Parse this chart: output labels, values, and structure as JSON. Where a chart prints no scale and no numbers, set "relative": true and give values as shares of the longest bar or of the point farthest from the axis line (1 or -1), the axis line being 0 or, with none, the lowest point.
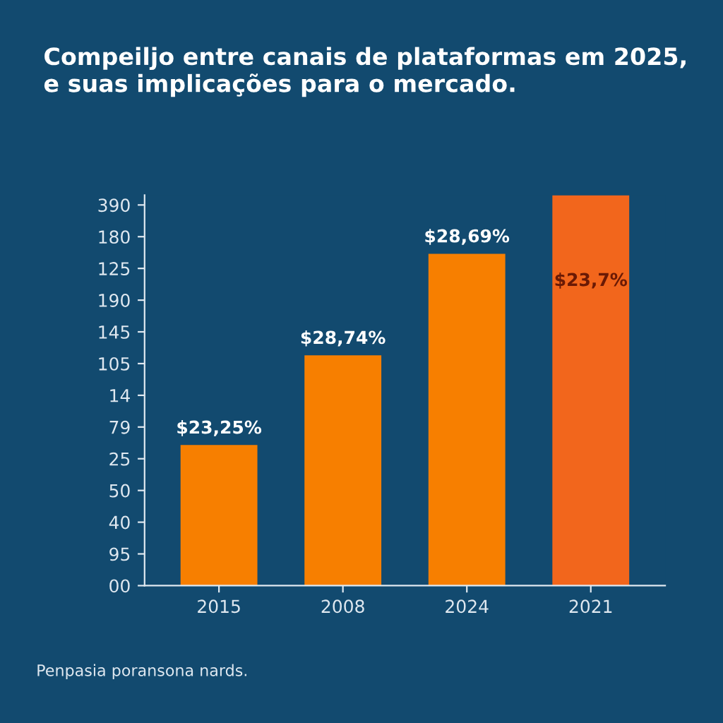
{
  "chart_data": {
    "type": "bar",
    "title": "Compeiljo entre canais de plataformas em 2025,\ne suas implicações para o mercado.",
    "relative": true,
    "categories": [
      "2015",
      "2008",
      "2024",
      "2021"
    ],
    "values": [
      0.36,
      0.59,
      0.85,
      1
    ],
    "colors": [
      "#f77f00",
      "#f77f00",
      "#f77f00",
      "#f2661c"
    ],
    "annotations": [
      {
        "text": "$23,25%",
        "x": "2015",
        "y": 0.36
      },
      {
        "text": "$28,74%",
        "x": "2008",
        "y": 0.59
      },
      {
        "text": "$28,69%",
        "x": "2024",
        "y": 0.85
      },
      "$23,7%",
      "00",
      "95",
      "40",
      "50",
      "25",
      "79",
      "14",
      "105",
      "145",
      "190",
      "125",
      "180",
      "390",
      "Penpasia poransona nards."
    ]
  }
}
